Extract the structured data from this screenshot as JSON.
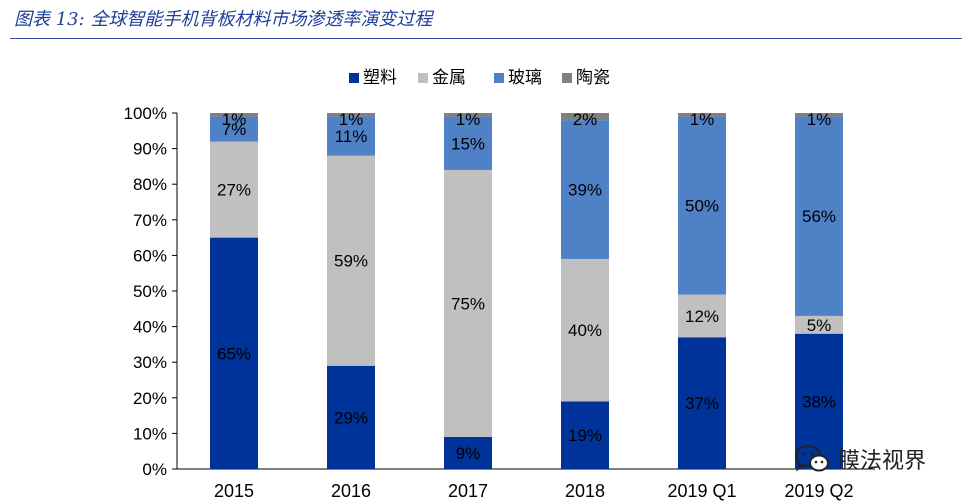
{
  "figure": {
    "title_prefix": "图表 13:",
    "title_text": "全球智能手机背板材料市场渗透率演变过程"
  },
  "watermark": {
    "text": "膜法视界",
    "icon": "wechat-icon"
  },
  "chart_data": {
    "type": "bar",
    "stacked": true,
    "title": "全球智能手机背板材料市场渗透率演变过程",
    "xlabel": "",
    "ylabel": "",
    "ylim": [
      0,
      100
    ],
    "y_ticks": [
      "0%",
      "10%",
      "20%",
      "30%",
      "40%",
      "50%",
      "60%",
      "70%",
      "80%",
      "90%",
      "100%"
    ],
    "categories": [
      "2015",
      "2016",
      "2017",
      "2018",
      "2019 Q1",
      "2019 Q2"
    ],
    "legend_position": "top-center",
    "series": [
      {
        "name": "塑料",
        "color": "#003399",
        "values": [
          65,
          29,
          9,
          19,
          37,
          38
        ],
        "labels": [
          "65%",
          "29%",
          "9%",
          "19%",
          "37%",
          "38%"
        ]
      },
      {
        "name": "金属",
        "color": "#c0c0c0",
        "values": [
          27,
          59,
          75,
          40,
          12,
          5
        ],
        "labels": [
          "27%",
          "59%",
          "75%",
          "40%",
          "12%",
          "5%"
        ]
      },
      {
        "name": "玻璃",
        "color": "#4f81c7",
        "values": [
          7,
          11,
          15,
          39,
          50,
          56
        ],
        "labels": [
          "7%",
          "11%",
          "15%",
          "39%",
          "50%",
          "56%"
        ]
      },
      {
        "name": "陶瓷",
        "color": "#808080",
        "values": [
          1,
          1,
          1,
          2,
          1,
          1
        ],
        "labels": [
          "1%",
          "1%",
          "1%",
          "2%",
          "1%",
          "1%"
        ]
      }
    ]
  }
}
